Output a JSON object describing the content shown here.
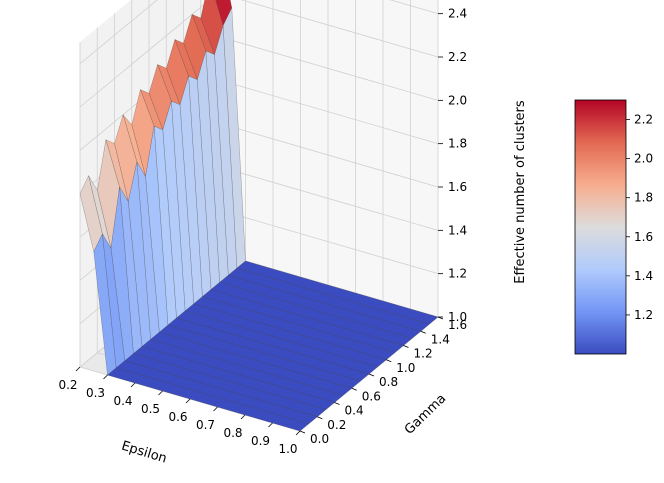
{
  "chart_data": {
    "type": "surface3d",
    "colormap": "coolwarm",
    "colormap_colors": [
      "#3b4cc0",
      "#7396f5",
      "#b0cbfc",
      "#dddcdc",
      "#f7ad8e",
      "#e26952",
      "#b40426"
    ],
    "x_axis": {
      "label": "Epsilon",
      "range": [
        0.2,
        1.0
      ],
      "ticks": [
        "0.2",
        "0.3",
        "0.4",
        "0.5",
        "0.6",
        "0.7",
        "0.8",
        "0.9",
        "1.0"
      ]
    },
    "y_axis": {
      "label": "Gamma",
      "range": [
        0.0,
        1.6
      ],
      "ticks": [
        "0.0",
        "0.2",
        "0.4",
        "0.6",
        "0.8",
        "1.0",
        "1.2",
        "1.4",
        "1.6"
      ]
    },
    "z_axis": {
      "label": "Effective number of clusters",
      "range": [
        1.0,
        2.5
      ],
      "ticks": [
        "1.0",
        "1.2",
        "1.4",
        "1.6",
        "1.8",
        "2.0",
        "2.2",
        "2.4"
      ]
    },
    "colorbar": {
      "range": [
        1.0,
        2.3
      ],
      "ticks": [
        "1.2",
        "1.4",
        "1.6",
        "1.8",
        "2.0",
        "2.2"
      ]
    },
    "grid": true,
    "epsilon": [
      0.2,
      0.25,
      0.3
    ],
    "gamma": [
      0.0,
      0.1,
      0.2,
      0.3,
      0.4,
      0.5,
      0.6,
      0.7,
      0.8,
      0.9,
      1.0,
      1.1,
      1.2,
      1.3,
      1.4,
      1.5,
      1.6
    ],
    "z_at_epsilon_0_2": [
      1.8,
      1.85,
      1.75,
      1.95,
      1.9,
      2.0,
      1.92,
      2.05,
      2.0,
      2.1,
      2.05,
      2.15,
      2.1,
      2.2,
      2.15,
      2.3,
      2.45
    ],
    "z_at_epsilon_0_25": [
      1.55,
      1.6,
      1.5,
      1.75,
      1.65,
      1.8,
      1.7,
      1.9,
      1.85,
      1.95,
      1.9,
      2.0,
      1.95,
      2.05,
      2.0,
      2.1,
      2.15
    ],
    "z_beyond_epsilon_0_3": 1.0
  }
}
